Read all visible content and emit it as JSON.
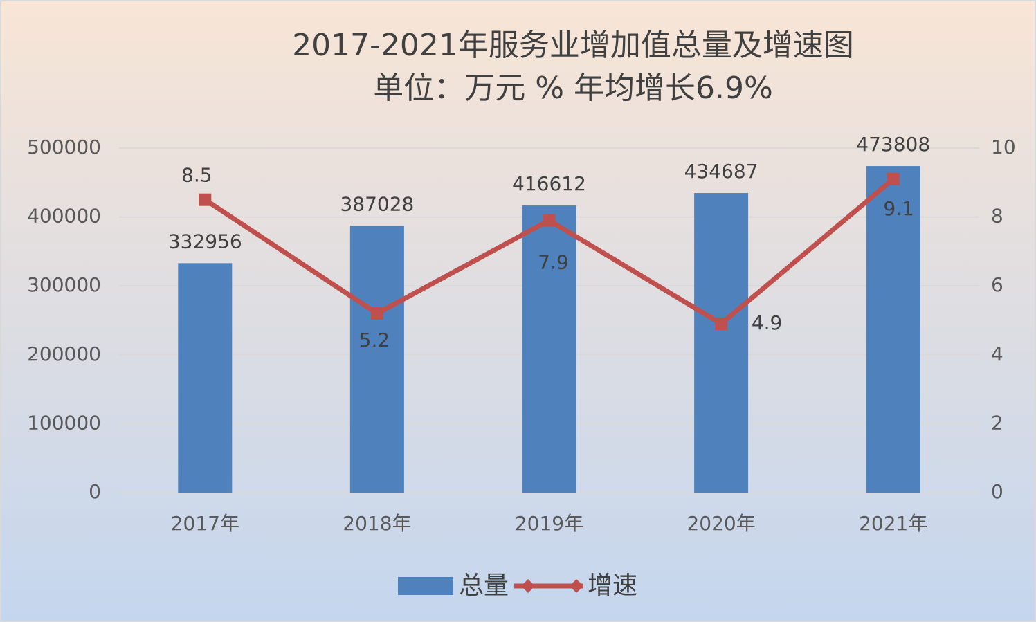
{
  "chart_data": {
    "type": "bar-line",
    "title": "2017-2021年服务业增加值总量及增速图",
    "subtitle": "单位：万元 % 年均增长6.9%",
    "categories": [
      "2017年",
      "2018年",
      "2019年",
      "2020年",
      "2021年"
    ],
    "series": [
      {
        "name": "总量",
        "type": "bar",
        "color": "#4f81bd",
        "values": [
          332956,
          387028,
          416612,
          434687,
          473808
        ]
      },
      {
        "name": "增速",
        "type": "line",
        "axis": "y2",
        "color": "#c0504d",
        "values": [
          8.5,
          5.2,
          7.9,
          4.9,
          9.1
        ]
      }
    ],
    "ylim": [
      0,
      500000
    ],
    "yticks": [
      0,
      100000,
      200000,
      300000,
      400000,
      500000
    ],
    "y2lim": [
      0,
      10
    ],
    "y2ticks": [
      0,
      2,
      4,
      6,
      8,
      10
    ],
    "grid": true,
    "legend": "bottom"
  }
}
